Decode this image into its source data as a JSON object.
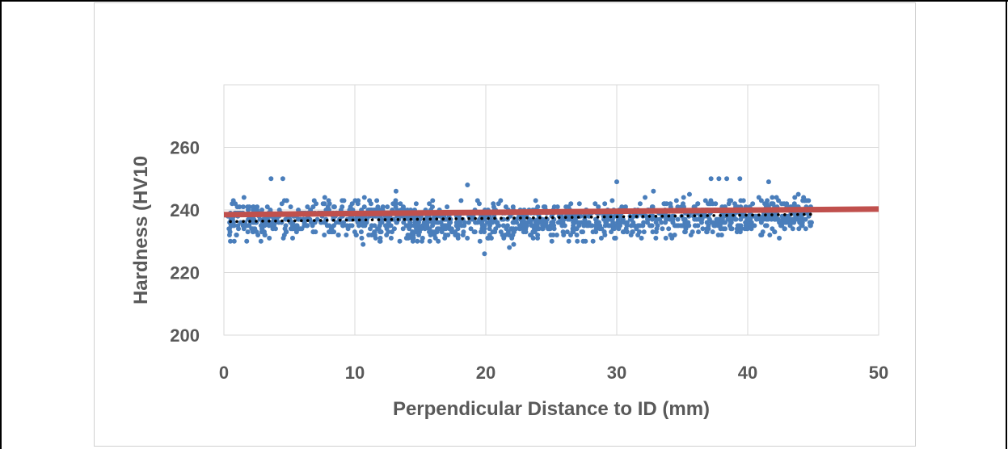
{
  "chart_data": {
    "type": "scatter",
    "xlabel": "Perpendicular Distance to ID (mm)",
    "ylabel": "Hardness (HV10",
    "xlim": [
      0,
      50
    ],
    "ylim": [
      200,
      280
    ],
    "x_ticks": [
      "0",
      "10",
      "20",
      "30",
      "40",
      "50"
    ],
    "y_ticks": [
      "200",
      "220",
      "240",
      "260"
    ],
    "grid": true,
    "series": [
      {
        "kind": "scatter",
        "color": "#4a7ebb",
        "points": {
          "x_range": [
            0.3,
            44.9
          ],
          "count": 1400,
          "mean_trend": [
            [
              0,
              236.5
            ],
            [
              45,
              238.5
            ]
          ],
          "spread": 5,
          "min": 226,
          "max": 250,
          "outliers": [
            [
              3.6,
              250
            ],
            [
              4.5,
              250
            ],
            [
              18.6,
              248
            ],
            [
              30,
              249
            ],
            [
              37.2,
              250
            ],
            [
              37.8,
              250
            ],
            [
              38.4,
              250
            ],
            [
              39.4,
              250
            ],
            [
              41.6,
              249
            ],
            [
              19.9,
              226
            ],
            [
              21.8,
              228
            ]
          ]
        }
      },
      {
        "kind": "line",
        "color": "#c0504d",
        "points": [
          [
            0,
            238.5
          ],
          [
            50,
            240.3
          ]
        ]
      },
      {
        "kind": "dotted-trend",
        "color": "#000000",
        "points": [
          [
            0.5,
            236.3
          ],
          [
            44.8,
            238.6
          ]
        ]
      }
    ]
  }
}
